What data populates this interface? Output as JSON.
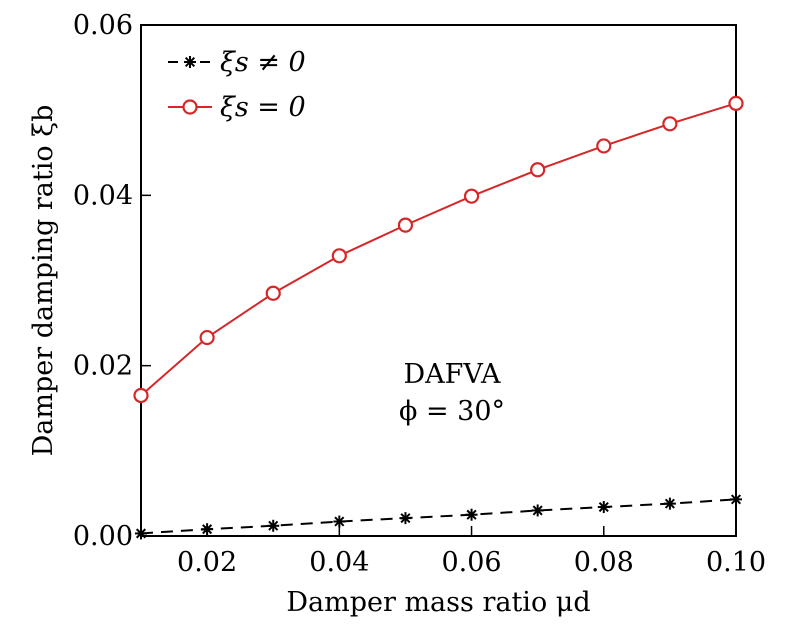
{
  "chart_data": {
    "type": "line",
    "xlabel": "Damper mass ratio μd",
    "ylabel": "Damper damping ratio ξb",
    "xlim": [
      0.01,
      0.1
    ],
    "ylim": [
      0.0,
      0.06
    ],
    "x_ticks": [
      "0.02",
      "0.04",
      "0.06",
      "0.08",
      "0.10"
    ],
    "y_ticks": [
      "0.00",
      "0.02",
      "0.04",
      "0.06"
    ],
    "grid": false,
    "legend_position": "top-left",
    "annotation": {
      "line1": "DAFVA",
      "line2": "ϕ = 30°"
    },
    "x": [
      0.01,
      0.02,
      0.03,
      0.04,
      0.05,
      0.06,
      0.07,
      0.08,
      0.09,
      0.1
    ],
    "series": [
      {
        "name": "ξs ≠ 0",
        "color": "#000000",
        "line_style": "dashed",
        "marker": "asterisk",
        "values": [
          0.0003,
          0.0008,
          0.0012,
          0.0017,
          0.0021,
          0.0025,
          0.003,
          0.0034,
          0.0038,
          0.0043
        ]
      },
      {
        "name": "ξs = 0",
        "color": "#d62728",
        "line_style": "solid",
        "marker": "circle",
        "values": [
          0.0165,
          0.0233,
          0.0285,
          0.0329,
          0.0365,
          0.0399,
          0.043,
          0.0458,
          0.0484,
          0.0508
        ]
      }
    ]
  }
}
